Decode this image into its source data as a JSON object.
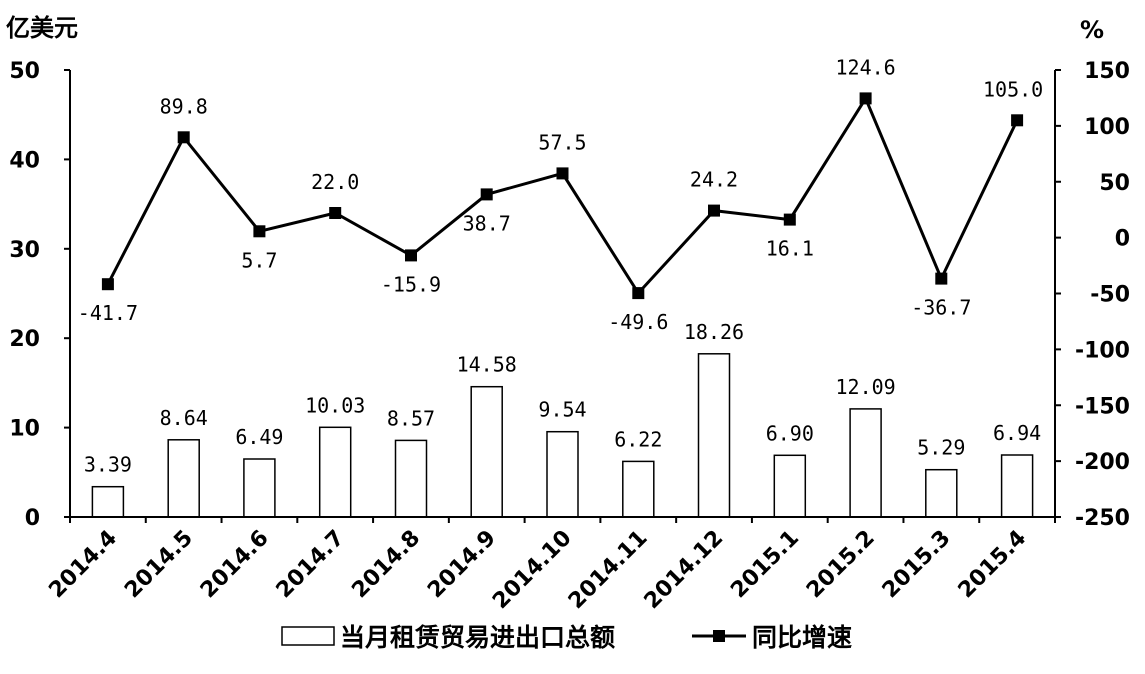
{
  "chart_data": {
    "type": "bar+line",
    "title_fragment": "",
    "categories": [
      "2014.4",
      "2014.5",
      "2014.6",
      "2014.7",
      "2014.8",
      "2014.9",
      "2014.10",
      "2014.11",
      "2014.12",
      "2015.1",
      "2015.2",
      "2015.3",
      "2015.4"
    ],
    "left_axis": {
      "unit": "亿美元",
      "ylim": [
        0,
        50
      ],
      "ticks": [
        "0",
        "10",
        "20",
        "30",
        "40",
        "50"
      ]
    },
    "right_axis": {
      "unit": "%",
      "ylim": [
        -250,
        150
      ],
      "ticks": [
        "-250",
        "-200",
        "-150",
        "-100",
        "-50",
        "0",
        "50",
        "100",
        "150"
      ]
    },
    "series": [
      {
        "name": "当月租赁贸易进出口总额",
        "type": "bar",
        "axis": "left",
        "values": [
          3.39,
          8.64,
          6.49,
          10.03,
          8.57,
          14.58,
          9.54,
          6.22,
          18.26,
          6.9,
          12.09,
          5.29,
          6.94
        ],
        "labels": [
          "3.39",
          "8.64",
          "6.49",
          "10.03",
          "8.57",
          "14.58",
          "9.54",
          "6.22",
          "18.26",
          "6.90",
          "12.09",
          "5.29",
          "6.94"
        ]
      },
      {
        "name": "同比增速",
        "type": "line",
        "axis": "right",
        "values": [
          -41.7,
          89.8,
          5.7,
          22.0,
          -15.9,
          38.7,
          57.5,
          -49.6,
          24.2,
          16.1,
          124.6,
          -36.7,
          105.0
        ],
        "labels": [
          "-41.7",
          "89.8",
          "5.7",
          "22.0",
          "-15.9",
          "38.7",
          "57.5",
          "-49.6",
          "24.2",
          "16.1",
          "124.6",
          "-36.7",
          "105.0"
        ]
      }
    ],
    "grid": false,
    "legend": "bottom",
    "colors": {
      "bar_fill": "#ffffff",
      "bar_stroke": "#000000",
      "line": "#000000",
      "marker": "#000000",
      "axis": "#000000"
    }
  }
}
